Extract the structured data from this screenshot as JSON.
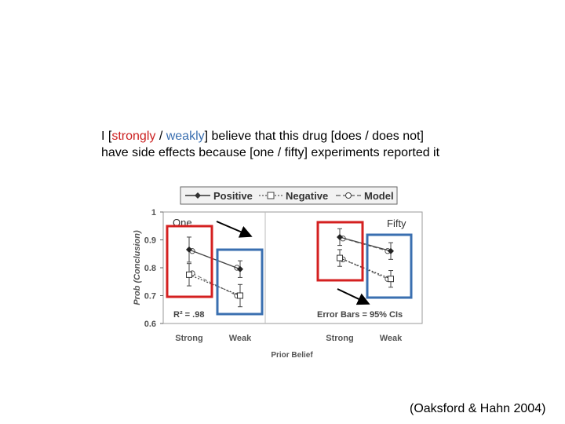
{
  "prompt": {
    "line1": {
      "before": "I [",
      "strong": "strongly",
      "sep": " / ",
      "weak": "weakly",
      "after": "] believe that this drug [does / does not]"
    },
    "line2": "have side effects because [one / fifty] experiments reported it"
  },
  "citation": "(Oaksford & Hahn 2004)",
  "chart_data": {
    "type": "line",
    "ylabel": "Prob (Conclusion)",
    "xlabel": "Prior Belief",
    "ylim": [
      0.6,
      1.0
    ],
    "yticks": [
      "1",
      "0.9",
      "0.8",
      "0.7",
      "0.6"
    ],
    "categories": [
      "Strong",
      "Weak"
    ],
    "legend": [
      "Positive",
      "Negative",
      "Model"
    ],
    "legend_position": "top",
    "colors": {
      "red_box": "#d42020",
      "blue_box": "#3a6fb0",
      "series": "#444444"
    },
    "panels": [
      {
        "title": "One",
        "annotation": "R² = .98",
        "series": [
          {
            "name": "Positive",
            "values": [
              0.865,
              0.795
            ],
            "ci": [
              0.045,
              0.03
            ]
          },
          {
            "name": "Negative",
            "values": [
              0.775,
              0.7
            ],
            "ci": [
              0.04,
              0.04
            ]
          }
        ],
        "model": [
          [
            0.86,
            0.8
          ],
          [
            0.78,
            0.7
          ]
        ]
      },
      {
        "title": "Fifty",
        "annotation": "Error Bars = 95% CIs",
        "series": [
          {
            "name": "Positive",
            "values": [
              0.91,
              0.86
            ],
            "ci": [
              0.03,
              0.03
            ]
          },
          {
            "name": "Negative",
            "values": [
              0.835,
              0.76
            ],
            "ci": [
              0.03,
              0.03
            ]
          }
        ],
        "model": [
          [
            0.905,
            0.86
          ],
          [
            0.83,
            0.76
          ]
        ]
      }
    ]
  }
}
